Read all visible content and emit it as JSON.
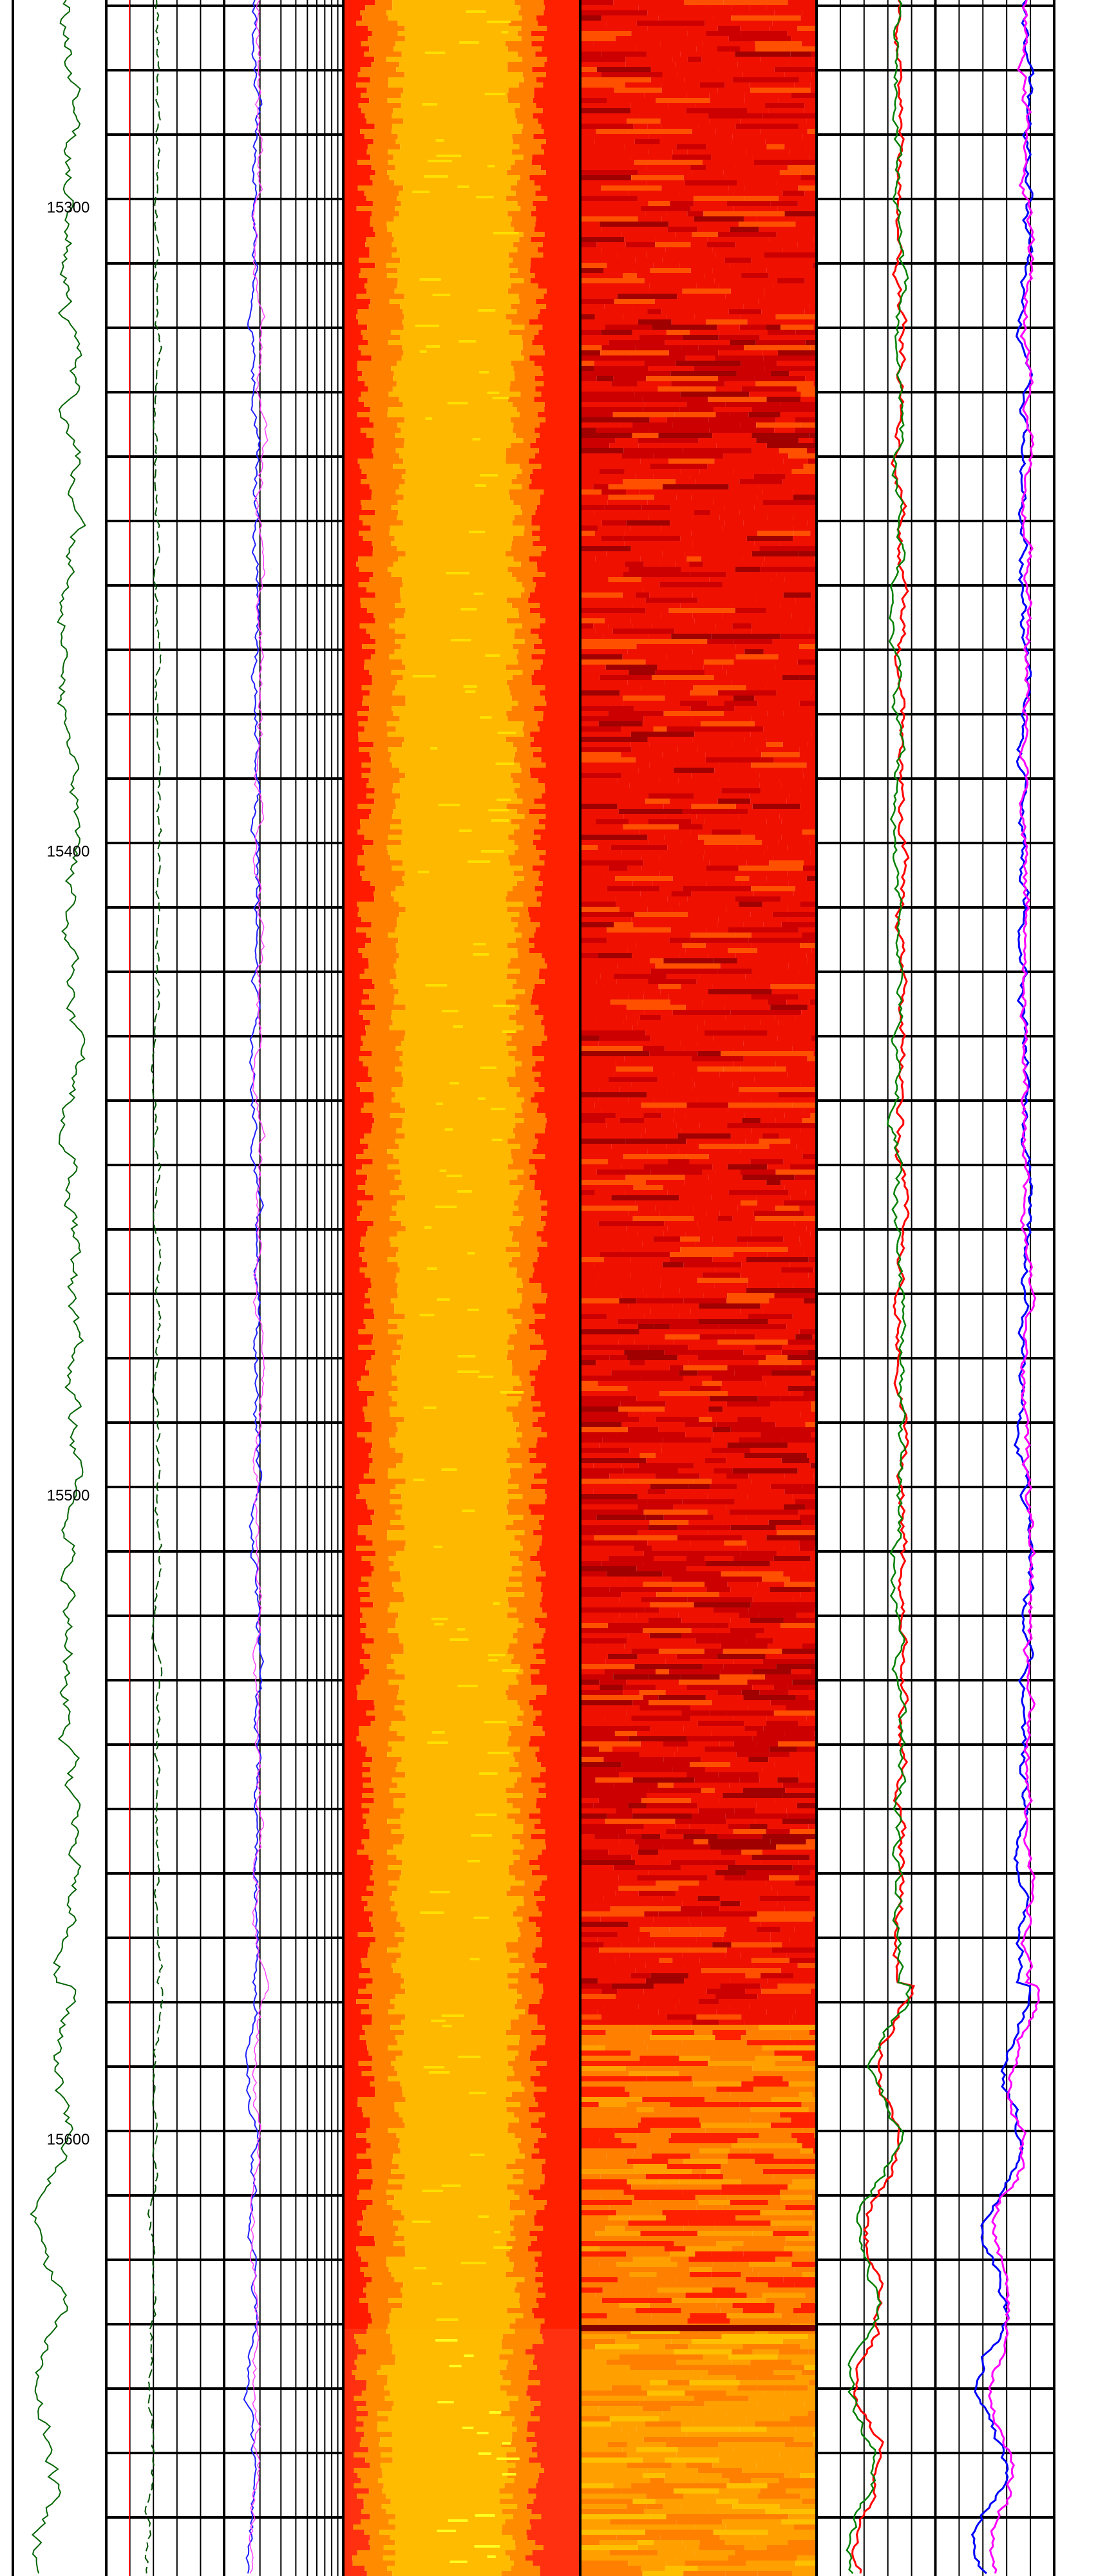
{
  "depth_labels": [
    "15300",
    "15400",
    "15500",
    "15600"
  ]
}
